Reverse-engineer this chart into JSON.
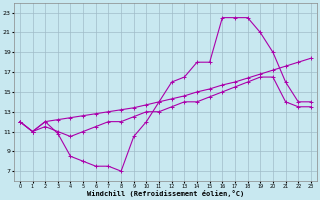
{
  "xlabel": "Windchill (Refroidissement éolien,°C)",
  "bg_color": "#c8e8f0",
  "grid_color": "#a0bcc8",
  "line_color": "#aa00aa",
  "xlim": [
    -0.5,
    23.5
  ],
  "ylim": [
    6,
    24
  ],
  "xticks": [
    0,
    1,
    2,
    3,
    4,
    5,
    6,
    7,
    8,
    9,
    10,
    11,
    12,
    13,
    14,
    15,
    16,
    17,
    18,
    19,
    20,
    21,
    22,
    23
  ],
  "yticks": [
    7,
    9,
    11,
    13,
    15,
    17,
    19,
    21,
    23
  ],
  "series1_x": [
    0,
    1,
    2,
    3,
    4,
    5,
    6,
    7,
    8,
    9,
    10,
    11,
    12,
    13,
    14,
    15,
    16,
    17,
    18,
    19,
    20,
    21,
    22,
    23
  ],
  "series1_y": [
    12.0,
    11.0,
    12.0,
    10.8,
    8.5,
    8.0,
    7.5,
    7.5,
    7.0,
    10.5,
    12.0,
    14.0,
    16.0,
    16.5,
    18.0,
    18.0,
    22.5,
    22.5,
    22.5,
    21.0,
    19.0,
    16.0,
    14.0,
    14.0
  ],
  "series2_x": [
    0,
    1,
    2,
    3,
    4,
    5,
    6,
    7,
    8,
    9,
    10,
    11,
    12,
    13,
    14,
    15,
    16,
    17,
    18,
    19,
    20,
    21,
    22,
    23
  ],
  "series2_y": [
    12.0,
    11.0,
    12.0,
    12.2,
    12.4,
    12.6,
    12.8,
    13.0,
    13.2,
    13.4,
    13.7,
    14.0,
    14.3,
    14.6,
    15.0,
    15.3,
    15.7,
    16.0,
    16.4,
    16.8,
    17.2,
    17.6,
    18.0,
    18.4
  ],
  "series3_x": [
    0,
    1,
    2,
    3,
    4,
    5,
    6,
    7,
    8,
    9,
    10,
    11,
    12,
    13,
    14,
    15,
    16,
    17,
    18,
    19,
    20,
    21,
    22,
    23
  ],
  "series3_y": [
    12.0,
    11.0,
    11.5,
    11.0,
    10.5,
    11.0,
    11.5,
    12.0,
    12.0,
    12.5,
    13.0,
    13.0,
    13.5,
    14.0,
    14.0,
    14.5,
    15.0,
    15.5,
    16.0,
    16.5,
    16.5,
    14.0,
    13.5,
    13.5
  ]
}
